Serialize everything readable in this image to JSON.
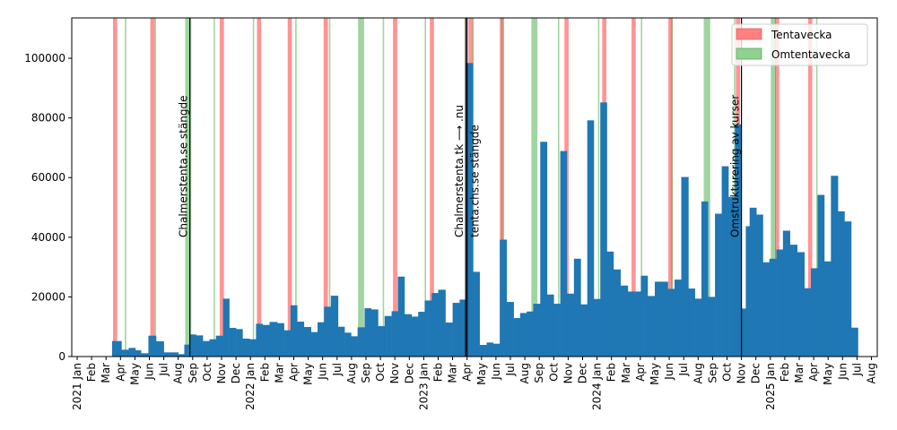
{
  "chart_data": {
    "type": "bar",
    "title": "",
    "xlabel": "",
    "ylabel": "",
    "ylim": [
      0,
      113500
    ],
    "grid": false,
    "legend_placement": "top-right",
    "legend": [
      {
        "label": "Tentavecka",
        "color": "#ff8080"
      },
      {
        "label": "Omtentavecka",
        "color": "#8fd28f"
      }
    ],
    "bar_color": "#1f77b4",
    "y_ticks": [
      0,
      20000,
      40000,
      60000,
      80000,
      100000
    ],
    "y_tick_labels": [
      "0",
      "20000",
      "40000",
      "60000",
      "80000",
      "100000"
    ],
    "x_ticks": [
      {
        "m": 0,
        "label": "2021 Jan"
      },
      {
        "m": 1,
        "label": "Feb"
      },
      {
        "m": 2,
        "label": "Mar"
      },
      {
        "m": 3,
        "label": "Apr"
      },
      {
        "m": 4,
        "label": "May"
      },
      {
        "m": 5,
        "label": "Jun"
      },
      {
        "m": 6,
        "label": "Jul"
      },
      {
        "m": 7,
        "label": "Aug"
      },
      {
        "m": 8,
        "label": "Sep"
      },
      {
        "m": 9,
        "label": "Oct"
      },
      {
        "m": 10,
        "label": "Nov"
      },
      {
        "m": 11,
        "label": "Dec"
      },
      {
        "m": 12,
        "label": "2022 Jan"
      },
      {
        "m": 13,
        "label": "Feb"
      },
      {
        "m": 14,
        "label": "Mar"
      },
      {
        "m": 15,
        "label": "Apr"
      },
      {
        "m": 16,
        "label": "May"
      },
      {
        "m": 17,
        "label": "Jun"
      },
      {
        "m": 18,
        "label": "Jul"
      },
      {
        "m": 19,
        "label": "Aug"
      },
      {
        "m": 20,
        "label": "Sep"
      },
      {
        "m": 21,
        "label": "Oct"
      },
      {
        "m": 22,
        "label": "Nov"
      },
      {
        "m": 23,
        "label": "Dec"
      },
      {
        "m": 24,
        "label": "2023 Jan"
      },
      {
        "m": 25,
        "label": "Feb"
      },
      {
        "m": 26,
        "label": "Mar"
      },
      {
        "m": 27,
        "label": "Apr"
      },
      {
        "m": 28,
        "label": "May"
      },
      {
        "m": 29,
        "label": "Jun"
      },
      {
        "m": 30,
        "label": "Jul"
      },
      {
        "m": 31,
        "label": "Aug"
      },
      {
        "m": 32,
        "label": "Sep"
      },
      {
        "m": 33,
        "label": "Oct"
      },
      {
        "m": 34,
        "label": "Nov"
      },
      {
        "m": 35,
        "label": "Dec"
      },
      {
        "m": 36,
        "label": "2024 Jan"
      },
      {
        "m": 37,
        "label": "Feb"
      },
      {
        "m": 38,
        "label": "Mar"
      },
      {
        "m": 39,
        "label": "Apr"
      },
      {
        "m": 40,
        "label": "May"
      },
      {
        "m": 41,
        "label": "Jun"
      },
      {
        "m": 42,
        "label": "Jul"
      },
      {
        "m": 43,
        "label": "Aug"
      },
      {
        "m": 44,
        "label": "Sep"
      },
      {
        "m": 45,
        "label": "Oct"
      },
      {
        "m": 46,
        "label": "Nov"
      },
      {
        "m": 47,
        "label": "Dec"
      },
      {
        "m": 48,
        "label": "2025 Jan"
      },
      {
        "m": 49,
        "label": "Feb"
      },
      {
        "m": 50,
        "label": "Mar"
      },
      {
        "m": 51,
        "label": "Apr"
      },
      {
        "m": 52,
        "label": "May"
      },
      {
        "m": 53,
        "label": "Jun"
      },
      {
        "m": 54,
        "label": "Jul"
      },
      {
        "m": 55,
        "label": "Aug"
      }
    ],
    "bars": [
      {
        "start": "2021-03-14",
        "end": "2021-04-03",
        "value": 5200
      },
      {
        "start": "2021-04-03",
        "end": "2021-04-18",
        "value": 2300
      },
      {
        "start": "2021-04-18",
        "end": "2021-05-02",
        "value": 2900
      },
      {
        "start": "2021-05-02",
        "end": "2021-05-14",
        "value": 2100
      },
      {
        "start": "2021-05-14",
        "end": "2021-05-30",
        "value": 1100
      },
      {
        "start": "2021-05-30",
        "end": "2021-06-15",
        "value": 7000
      },
      {
        "start": "2021-06-15",
        "end": "2021-07-01",
        "value": 5100
      },
      {
        "start": "2021-07-01",
        "end": "2021-07-16",
        "value": 1400
      },
      {
        "start": "2021-07-16",
        "end": "2021-08-01",
        "value": 1400
      },
      {
        "start": "2021-08-01",
        "end": "2021-08-14",
        "value": 800
      },
      {
        "start": "2021-08-14",
        "end": "2021-08-26",
        "value": 4000
      },
      {
        "start": "2021-08-26",
        "end": "2021-09-08",
        "value": 7400
      },
      {
        "start": "2021-09-08",
        "end": "2021-09-22",
        "value": 7100
      },
      {
        "start": "2021-09-22",
        "end": "2021-10-06",
        "value": 5200
      },
      {
        "start": "2021-10-06",
        "end": "2021-10-20",
        "value": 5800
      },
      {
        "start": "2021-10-20",
        "end": "2021-11-04",
        "value": 7000
      },
      {
        "start": "2021-11-04",
        "end": "2021-11-17",
        "value": 19400
      },
      {
        "start": "2021-11-17",
        "end": "2021-12-01",
        "value": 9600
      },
      {
        "start": "2021-12-01",
        "end": "2021-12-15",
        "value": 9200
      },
      {
        "start": "2021-12-15",
        "end": "2021-12-30",
        "value": 6000
      },
      {
        "start": "2021-12-30",
        "end": "2022-01-13",
        "value": 5800
      },
      {
        "start": "2022-01-13",
        "end": "2022-01-27",
        "value": 11000
      },
      {
        "start": "2022-01-27",
        "end": "2022-02-10",
        "value": 10600
      },
      {
        "start": "2022-02-10",
        "end": "2022-02-25",
        "value": 11600
      },
      {
        "start": "2022-02-25",
        "end": "2022-03-11",
        "value": 11200
      },
      {
        "start": "2022-03-11",
        "end": "2022-03-25",
        "value": 8800
      },
      {
        "start": "2022-03-25",
        "end": "2022-04-08",
        "value": 17200
      },
      {
        "start": "2022-04-08",
        "end": "2022-04-22",
        "value": 11700
      },
      {
        "start": "2022-04-22",
        "end": "2022-05-07",
        "value": 9900
      },
      {
        "start": "2022-05-07",
        "end": "2022-05-21",
        "value": 8200
      },
      {
        "start": "2022-05-21",
        "end": "2022-06-04",
        "value": 11500
      },
      {
        "start": "2022-06-04",
        "end": "2022-06-18",
        "value": 16700
      },
      {
        "start": "2022-06-18",
        "end": "2022-07-03",
        "value": 20400
      },
      {
        "start": "2022-07-03",
        "end": "2022-07-17",
        "value": 10000
      },
      {
        "start": "2022-07-17",
        "end": "2022-07-31",
        "value": 8000
      },
      {
        "start": "2022-07-31",
        "end": "2022-08-14",
        "value": 6800
      },
      {
        "start": "2022-08-14",
        "end": "2022-08-29",
        "value": 9800
      },
      {
        "start": "2022-08-29",
        "end": "2022-09-12",
        "value": 16200
      },
      {
        "start": "2022-09-12",
        "end": "2022-09-26",
        "value": 15800
      },
      {
        "start": "2022-09-26",
        "end": "2022-10-10",
        "value": 10200
      },
      {
        "start": "2022-10-10",
        "end": "2022-10-25",
        "value": 13600
      },
      {
        "start": "2022-10-25",
        "end": "2022-11-07",
        "value": 15200
      },
      {
        "start": "2022-11-07",
        "end": "2022-11-21",
        "value": 26800
      },
      {
        "start": "2022-11-21",
        "end": "2022-12-06",
        "value": 14200
      },
      {
        "start": "2022-12-06",
        "end": "2022-12-20",
        "value": 13400
      },
      {
        "start": "2022-12-20",
        "end": "2023-01-03",
        "value": 15000
      },
      {
        "start": "2023-01-03",
        "end": "2023-01-18",
        "value": 18800
      },
      {
        "start": "2023-01-18",
        "end": "2023-02-01",
        "value": 21300
      },
      {
        "start": "2023-02-01",
        "end": "2023-02-15",
        "value": 22400
      },
      {
        "start": "2023-02-15",
        "end": "2023-03-01",
        "value": 11400
      },
      {
        "start": "2023-03-01",
        "end": "2023-03-16",
        "value": 18000
      },
      {
        "start": "2023-03-16",
        "end": "2023-03-30",
        "value": 19100
      },
      {
        "start": "2023-03-30",
        "end": "2023-04-13",
        "value": 98400
      },
      {
        "start": "2023-04-13",
        "end": "2023-04-27",
        "value": 28400
      },
      {
        "start": "2023-04-27",
        "end": "2023-05-12",
        "value": 3900
      },
      {
        "start": "2023-05-12",
        "end": "2023-05-26",
        "value": 4700
      },
      {
        "start": "2023-05-26",
        "end": "2023-06-09",
        "value": 4300
      },
      {
        "start": "2023-06-09",
        "end": "2023-06-23",
        "value": 39200
      },
      {
        "start": "2023-06-23",
        "end": "2023-07-08",
        "value": 18300
      },
      {
        "start": "2023-07-08",
        "end": "2023-07-22",
        "value": 12900
      },
      {
        "start": "2023-07-22",
        "end": "2023-08-05",
        "value": 14600
      },
      {
        "start": "2023-08-05",
        "end": "2023-08-19",
        "value": 15100
      },
      {
        "start": "2023-08-19",
        "end": "2023-09-03",
        "value": 17700
      },
      {
        "start": "2023-09-03",
        "end": "2023-09-17",
        "value": 72000
      },
      {
        "start": "2023-09-17",
        "end": "2023-10-01",
        "value": 20800
      },
      {
        "start": "2023-10-01",
        "end": "2023-10-15",
        "value": 17700
      },
      {
        "start": "2023-10-15",
        "end": "2023-10-29",
        "value": 68900
      },
      {
        "start": "2023-10-29",
        "end": "2023-11-13",
        "value": 21100
      },
      {
        "start": "2023-11-13",
        "end": "2023-11-27",
        "value": 32800
      },
      {
        "start": "2023-11-27",
        "end": "2023-12-11",
        "value": 17500
      },
      {
        "start": "2023-12-11",
        "end": "2023-12-25",
        "value": 79200
      },
      {
        "start": "2023-12-25",
        "end": "2024-01-08",
        "value": 19300
      },
      {
        "start": "2024-01-08",
        "end": "2024-01-22",
        "value": 85200
      },
      {
        "start": "2024-01-22",
        "end": "2024-02-05",
        "value": 35200
      },
      {
        "start": "2024-02-05",
        "end": "2024-02-19",
        "value": 29200
      },
      {
        "start": "2024-02-19",
        "end": "2024-03-05",
        "value": 23800
      },
      {
        "start": "2024-03-05",
        "end": "2024-03-19",
        "value": 21800
      },
      {
        "start": "2024-03-19",
        "end": "2024-04-02",
        "value": 21800
      },
      {
        "start": "2024-04-02",
        "end": "2024-04-16",
        "value": 27100
      },
      {
        "start": "2024-04-16",
        "end": "2024-05-01",
        "value": 20300
      },
      {
        "start": "2024-05-01",
        "end": "2024-05-15",
        "value": 25100
      },
      {
        "start": "2024-05-15",
        "end": "2024-05-29",
        "value": 25100
      },
      {
        "start": "2024-05-29",
        "end": "2024-06-12",
        "value": 22700
      },
      {
        "start": "2024-06-12",
        "end": "2024-06-26",
        "value": 25800
      },
      {
        "start": "2024-06-26",
        "end": "2024-07-11",
        "value": 60200
      },
      {
        "start": "2024-07-11",
        "end": "2024-07-25",
        "value": 22800
      },
      {
        "start": "2024-07-25",
        "end": "2024-08-08",
        "value": 19400
      },
      {
        "start": "2024-08-08",
        "end": "2024-08-22",
        "value": 52000
      },
      {
        "start": "2024-08-22",
        "end": "2024-09-06",
        "value": 20000
      },
      {
        "start": "2024-09-06",
        "end": "2024-09-20",
        "value": 47900
      },
      {
        "start": "2024-09-20",
        "end": "2024-10-04",
        "value": 63800
      },
      {
        "start": "2024-10-04",
        "end": "2024-10-18",
        "value": 53500
      },
      {
        "start": "2024-10-18",
        "end": "2024-11-01",
        "value": 77800
      },
      {
        "start": "2024-11-01",
        "end": "2024-11-10",
        "value": 16100
      },
      {
        "start": "2024-11-10",
        "end": "2024-11-18",
        "value": 43700
      },
      {
        "start": "2024-11-18",
        "end": "2024-12-02",
        "value": 49900
      },
      {
        "start": "2024-12-02",
        "end": "2024-12-16",
        "value": 47600
      },
      {
        "start": "2024-12-16",
        "end": "2024-12-30",
        "value": 31600
      },
      {
        "start": "2024-12-30",
        "end": "2025-01-14",
        "value": 32800
      },
      {
        "start": "2025-01-14",
        "end": "2025-01-28",
        "value": 35900
      },
      {
        "start": "2025-01-28",
        "end": "2025-02-11",
        "value": 42200
      },
      {
        "start": "2025-02-11",
        "end": "2025-02-25",
        "value": 37500
      },
      {
        "start": "2025-02-25",
        "end": "2025-03-12",
        "value": 35000
      },
      {
        "start": "2025-03-12",
        "end": "2025-03-26",
        "value": 22900
      },
      {
        "start": "2025-03-26",
        "end": "2025-04-09",
        "value": 29600
      },
      {
        "start": "2025-04-09",
        "end": "2025-04-23",
        "value": 54200
      },
      {
        "start": "2025-04-23",
        "end": "2025-05-07",
        "value": 31900
      },
      {
        "start": "2025-05-07",
        "end": "2025-05-22",
        "value": 60600
      },
      {
        "start": "2025-05-22",
        "end": "2025-06-05",
        "value": 48700
      },
      {
        "start": "2025-06-05",
        "end": "2025-06-19",
        "value": 45300
      },
      {
        "start": "2025-06-19",
        "end": "2025-07-03",
        "value": 9700
      }
    ],
    "tentavecka": [
      {
        "start": "2021-03-16",
        "end": "2021-03-25"
      },
      {
        "start": "2021-06-03",
        "end": "2021-06-12"
      },
      {
        "start": "2021-10-28",
        "end": "2021-11-06"
      },
      {
        "start": "2022-01-15",
        "end": "2022-01-24"
      },
      {
        "start": "2022-03-19",
        "end": "2022-03-28"
      },
      {
        "start": "2022-06-03",
        "end": "2022-06-12"
      },
      {
        "start": "2022-10-28",
        "end": "2022-11-06"
      },
      {
        "start": "2023-01-14",
        "end": "2023-01-23"
      },
      {
        "start": "2023-04-04",
        "end": "2023-04-13"
      },
      {
        "start": "2023-06-09",
        "end": "2023-06-18"
      },
      {
        "start": "2023-10-24",
        "end": "2023-11-02"
      },
      {
        "start": "2024-01-12",
        "end": "2024-01-21"
      },
      {
        "start": "2024-03-13",
        "end": "2024-03-22"
      },
      {
        "start": "2024-05-30",
        "end": "2024-06-08"
      },
      {
        "start": "2024-10-20",
        "end": "2024-10-29"
      },
      {
        "start": "2025-01-11",
        "end": "2025-01-20"
      },
      {
        "start": "2025-03-20",
        "end": "2025-03-29"
      }
    ],
    "omtentavecka": [
      {
        "start": "2021-04-10",
        "end": "2021-04-13"
      },
      {
        "start": "2021-06-12",
        "end": "2021-06-15"
      },
      {
        "start": "2021-08-16",
        "end": "2021-08-29"
      },
      {
        "start": "2021-10-15",
        "end": "2021-10-18"
      },
      {
        "start": "2022-01-06",
        "end": "2022-01-09"
      },
      {
        "start": "2022-04-04",
        "end": "2022-04-07"
      },
      {
        "start": "2022-06-14",
        "end": "2022-06-17"
      },
      {
        "start": "2022-08-15",
        "end": "2022-08-28"
      },
      {
        "start": "2022-10-06",
        "end": "2022-10-09"
      },
      {
        "start": "2023-01-03",
        "end": "2023-01-06"
      },
      {
        "start": "2023-04-12",
        "end": "2023-04-15"
      },
      {
        "start": "2023-06-12",
        "end": "2023-06-15"
      },
      {
        "start": "2023-08-15",
        "end": "2023-08-28"
      },
      {
        "start": "2023-10-10",
        "end": "2023-10-13"
      },
      {
        "start": "2024-01-03",
        "end": "2024-01-06"
      },
      {
        "start": "2024-04-02",
        "end": "2024-04-05"
      },
      {
        "start": "2024-06-05",
        "end": "2024-06-08"
      },
      {
        "start": "2024-08-13",
        "end": "2024-08-27"
      },
      {
        "start": "2024-10-16",
        "end": "2024-10-19"
      },
      {
        "start": "2025-01-02",
        "end": "2025-01-13"
      },
      {
        "start": "2025-04-06",
        "end": "2025-04-09"
      }
    ],
    "annotations": [
      {
        "date": "2021-08-26",
        "text": "Chalmerstenta.se stängde",
        "side": "left"
      },
      {
        "date": "2023-03-29",
        "text": "Chalmerstenta.tk ⟶ .nu",
        "side": "left"
      },
      {
        "date": "2023-04-01",
        "text": "tenta.chs.se stängde",
        "side": "right"
      },
      {
        "date": "2024-11-01",
        "text": "Omstrukturering av kurser",
        "side": "left"
      }
    ]
  }
}
